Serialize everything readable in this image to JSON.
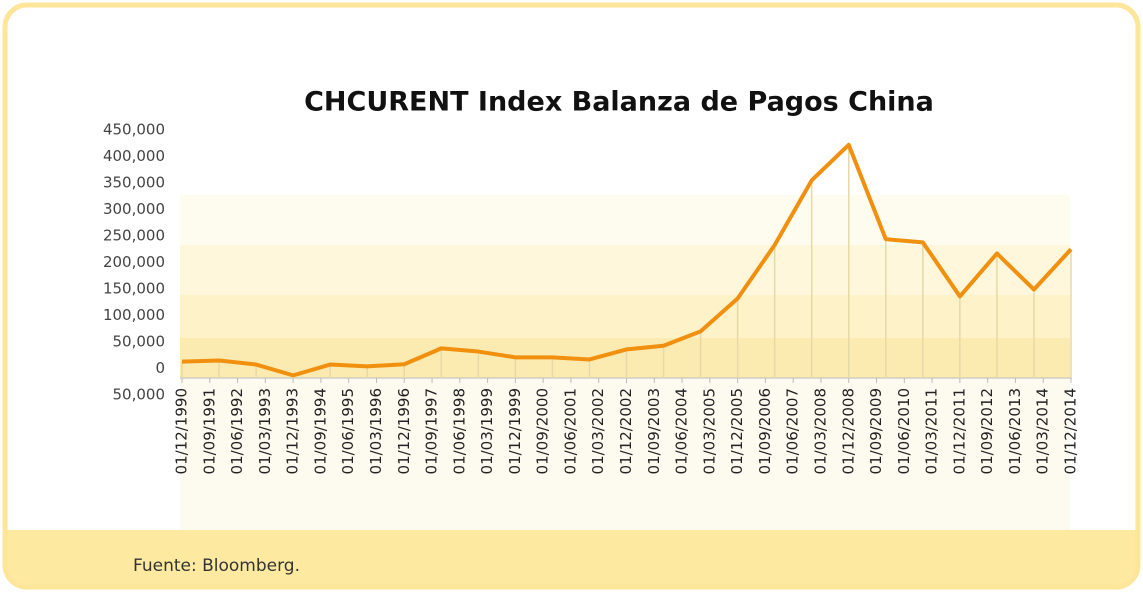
{
  "chart_data": {
    "type": "line",
    "title": "CHCURENT Index Balanza de Pagos China",
    "source": "Fuente: Bloomberg.",
    "x": [
      "01/12/1990",
      "01/12/1991",
      "01/12/1992",
      "01/12/1993",
      "01/12/1994",
      "01/12/1995",
      "01/12/1996",
      "01/12/1997",
      "01/12/1998",
      "01/12/1999",
      "01/12/2000",
      "01/12/2001",
      "01/12/2002",
      "01/12/2003",
      "01/12/2004",
      "01/12/2005",
      "01/12/2006",
      "01/12/2007",
      "01/12/2008",
      "01/12/2009",
      "01/12/2010",
      "01/12/2011",
      "01/12/2012",
      "01/12/2013",
      "01/12/2014"
    ],
    "series": [
      {
        "name": "CHCURENT Index",
        "color": "#f0900e",
        "values": [
          13000,
          15000,
          7500,
          -13000,
          7500,
          4000,
          8000,
          38000,
          32000,
          21000,
          21000,
          17000,
          36000,
          43000,
          70000,
          132000,
          233000,
          355000,
          422000,
          244000,
          238000,
          136000,
          217000,
          149000,
          225000
        ]
      }
    ],
    "xlim": [
      "01/12/1990",
      "01/12/2014"
    ],
    "xticks": [
      "01/12/1990",
      "01/09/1991",
      "01/06/1992",
      "01/03/1993",
      "01/12/1993",
      "01/09/1994",
      "01/06/1995",
      "01/03/1996",
      "01/12/1996",
      "01/09/1997",
      "01/06/1998",
      "01/03/1999",
      "01/12/1999",
      "01/09/2000",
      "01/06/2001",
      "01/03/2002",
      "01/12/2002",
      "01/09/2003",
      "01/06/2004",
      "01/03/2005",
      "01/12/2005",
      "01/09/2006",
      "01/06/2007",
      "01/03/2008",
      "01/12/2008",
      "01/09/2009",
      "01/06/2010",
      "01/03/2011",
      "01/12/2011",
      "01/09/2012",
      "01/06/2013",
      "01/03/2014",
      "01/12/2014"
    ],
    "ylim": [
      -50000,
      450000
    ],
    "yticks": [
      {
        "value": -50000,
        "label": "50,000"
      },
      0,
      {
        "value": 50000,
        "label": "50,000"
      },
      {
        "value": 100000,
        "label": "100,000"
      },
      {
        "value": 150000,
        "label": "150,000"
      },
      {
        "value": 200000,
        "label": "200,000"
      },
      {
        "value": 250000,
        "label": "250,000"
      },
      {
        "value": 300000,
        "label": "300,000"
      },
      {
        "value": 350000,
        "label": "350,000"
      },
      {
        "value": 400000,
        "label": "400,000"
      },
      {
        "value": 450000,
        "label": "450,000"
      }
    ],
    "drop_lines": true
  }
}
